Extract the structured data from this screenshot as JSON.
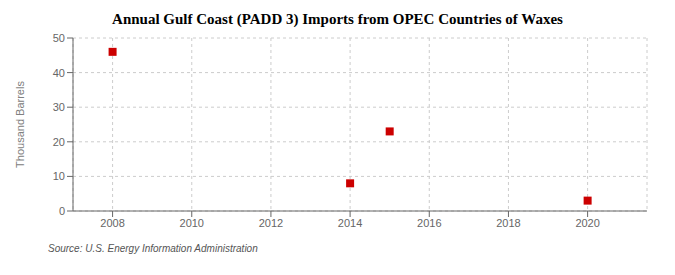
{
  "chart_data": {
    "type": "scatter",
    "title": "Annual Gulf Coast (PADD 3) Imports from OPEC Countries of Waxes",
    "ylabel": "Thousand Barrels",
    "source": "Source: U.S. Energy Information Administration",
    "x": [
      2008,
      2014,
      2015,
      2020
    ],
    "values": [
      46,
      8,
      23,
      3
    ],
    "color": "#cc0000",
    "marker": "square",
    "xlim": [
      2007.0,
      2021.5
    ],
    "ylim": [
      0,
      50
    ],
    "xticks": [
      2008,
      2010,
      2012,
      2014,
      2016,
      2018,
      2020
    ],
    "yticks": [
      0,
      10,
      20,
      30,
      40,
      50
    ],
    "grid": true
  }
}
